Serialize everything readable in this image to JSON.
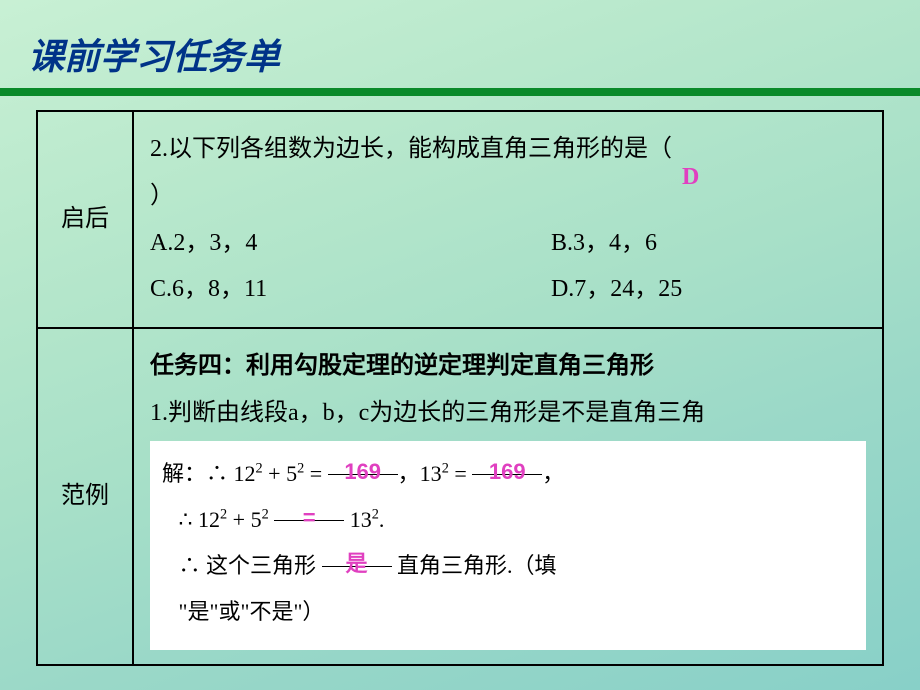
{
  "title": "课前学习任务单",
  "green_bar_color": "#0a8a2a",
  "title_color": "#003388",
  "answer_color": "#e040c0",
  "background_gradient": [
    "#c8f0d4",
    "#b8e8cc",
    "#a8e0c8",
    "#9ad8c8",
    "#88d0c8"
  ],
  "row1": {
    "label": "启后",
    "question_prefix": "2.以下列各组数为边长，能构成直角三角形的是（",
    "question_suffix": "）",
    "answer": "D",
    "options": {
      "A": "A.2，3，4",
      "B": "B.3，4，6",
      "C": "C.6，8，11",
      "D": "D.7，24，25"
    }
  },
  "row2": {
    "label": "范例",
    "task_title": "任务四：利用勾股定理的逆定理判定直角三角形",
    "task_body": "1.判断由线段a，b，c为边长的三角形是不是直角三角",
    "solution": {
      "line1_prefix": "解：∴ 12",
      "line1_mid1": " + 5",
      "line1_mid2": " = ",
      "blank1_value": "169",
      "line1_mid3": "，13",
      "line1_mid4": " = ",
      "blank2_value": "169",
      "line1_suffix": "，",
      "line2_prefix": "∴ 12",
      "line2_mid1": " + 5",
      "blank3_value": "=",
      "line2_suffix": " 13",
      "line2_end": ".",
      "line3_prefix": "∴ 这个三角形 ",
      "blank4_value": "是",
      "line3_suffix": " 直角三角形.（填",
      "line4": "\"是\"或\"不是\"）"
    }
  }
}
